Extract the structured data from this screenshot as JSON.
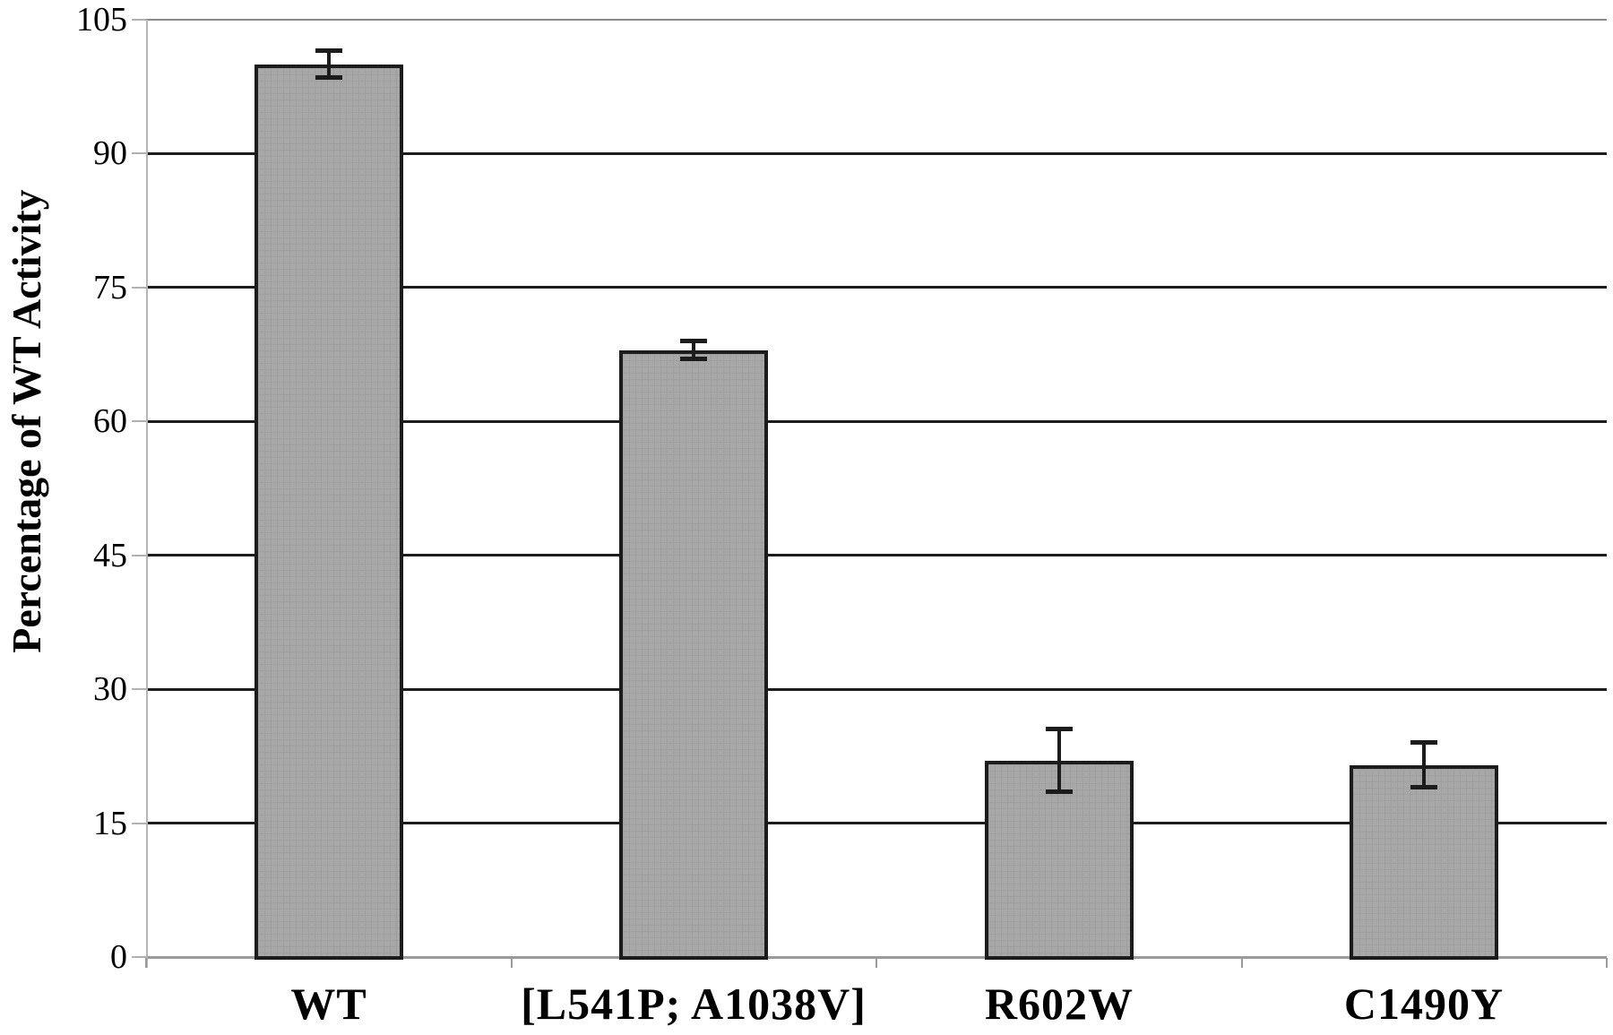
{
  "chart_data": {
    "type": "bar",
    "title": "",
    "xlabel": "",
    "ylabel": "Percentage of WT Activity",
    "categories": [
      "WT",
      "[L541P; A1038V]",
      "R602W",
      "C1490Y"
    ],
    "values": [
      100,
      68,
      22,
      21.5
    ],
    "error_bars": [
      1.5,
      1,
      3.5,
      2.5
    ],
    "y_ticks": [
      0,
      15,
      30,
      45,
      60,
      75,
      90,
      105
    ],
    "ylim": [
      0,
      105
    ],
    "grid": "horizontal",
    "legend": "none",
    "colors": {
      "bar_fill": "#a7a7a7",
      "bar_border": "#1c1c1c",
      "gridline": "#1c1c1c",
      "top_gridline": "#8a8a8a",
      "zero_baseline": "#9a9a9a",
      "axis_line": "#b5b5b5",
      "error_bar": "#1c1c1c",
      "text": "#000000",
      "background": "#ffffff"
    }
  }
}
